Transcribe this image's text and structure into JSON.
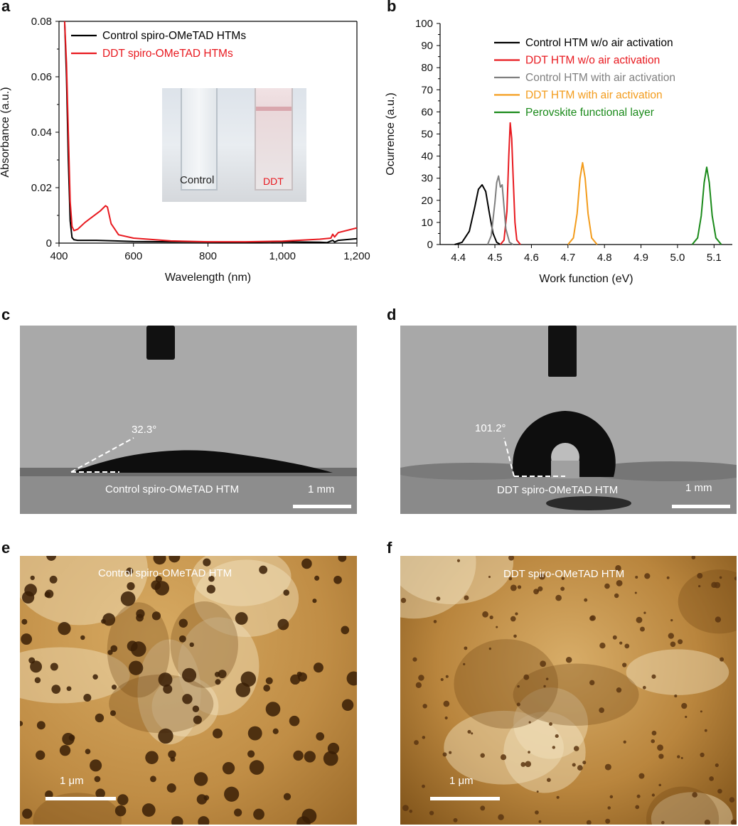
{
  "panels": {
    "a": "a",
    "b": "b",
    "c": "c",
    "d": "d",
    "e": "e",
    "f": "f"
  },
  "chart_data": [
    {
      "type": "line",
      "xlabel": "Wavelength (nm)",
      "ylabel": "Absorbance (a.u.)",
      "xlim": [
        400,
        1200
      ],
      "ylim": [
        0,
        0.08
      ],
      "xticks": [
        400,
        600,
        800,
        1000,
        1200
      ],
      "xtick_labels": [
        "400",
        "600",
        "800",
        "1,000",
        "1,200"
      ],
      "yticks": [
        0,
        0.02,
        0.04,
        0.06,
        0.08
      ],
      "ytick_labels": [
        "0",
        "0.02",
        "0.04",
        "0.06",
        "0.08"
      ],
      "legend_position": "top-right",
      "inset": {
        "control_label": "Control",
        "ddt_label": "DDT"
      },
      "series": [
        {
          "name": "Control spiro-OMeTAD HTMs",
          "color": "#000000",
          "x": [
            415,
            420,
            425,
            430,
            435,
            440,
            450,
            500,
            550,
            600,
            700,
            800,
            900,
            1000,
            1100,
            1120,
            1135,
            1140,
            1150,
            1200
          ],
          "y": [
            0.08,
            0.06,
            0.03,
            0.008,
            0.002,
            0.0012,
            0.001,
            0.001,
            0.0008,
            0.0006,
            0.0005,
            0.0004,
            0.0003,
            0.0005,
            0.0003,
            0.0002,
            0.001,
            0.0004,
            0.001,
            0.0016
          ]
        },
        {
          "name": "DDT spiro-OMeTAD HTMs",
          "color": "#e8191f",
          "x": [
            415,
            420,
            425,
            430,
            435,
            440,
            450,
            470,
            490,
            510,
            525,
            530,
            540,
            560,
            600,
            700,
            800,
            900,
            1000,
            1100,
            1130,
            1135,
            1140,
            1150,
            1200
          ],
          "y": [
            0.08,
            0.065,
            0.04,
            0.015,
            0.006,
            0.0045,
            0.005,
            0.0075,
            0.0095,
            0.0115,
            0.0135,
            0.013,
            0.007,
            0.003,
            0.0018,
            0.0008,
            0.0005,
            0.0005,
            0.0007,
            0.0014,
            0.0018,
            0.0032,
            0.0022,
            0.0038,
            0.0055
          ]
        }
      ]
    },
    {
      "type": "line",
      "xlabel": "Work function (eV)",
      "ylabel": "Ocurrence (a.u.)",
      "xlim": [
        4.35,
        5.15
      ],
      "ylim": [
        0,
        100
      ],
      "xticks": [
        4.4,
        4.5,
        4.6,
        4.7,
        4.8,
        4.9,
        5.0,
        5.1
      ],
      "xtick_labels": [
        "4.4",
        "4.5",
        "4.6",
        "4.7",
        "4.8",
        "4.9",
        "5.0",
        "5.1"
      ],
      "yticks": [
        0,
        10,
        20,
        30,
        40,
        50,
        60,
        70,
        80,
        90,
        100
      ],
      "ytick_labels": [
        "0",
        "10",
        "20",
        "30",
        "40",
        "50",
        "60",
        "70",
        "80",
        "90",
        "100"
      ],
      "legend_position": "top-right",
      "series": [
        {
          "name": "Control HTM w/o air activation",
          "color": "#000000",
          "x": [
            4.39,
            4.41,
            4.43,
            4.445,
            4.455,
            4.465,
            4.475,
            4.485,
            4.495,
            4.505,
            4.515
          ],
          "y": [
            0,
            1,
            6,
            17,
            25,
            27,
            24,
            14,
            5,
            1,
            0
          ]
        },
        {
          "name": "DDT HTM w/o air activation",
          "color": "#e8191f",
          "x": [
            4.515,
            4.525,
            4.533,
            4.538,
            4.542,
            4.546,
            4.55,
            4.555,
            4.56,
            4.57
          ],
          "y": [
            0,
            2,
            15,
            40,
            55,
            48,
            30,
            10,
            2,
            0
          ]
        },
        {
          "name": "Control HTM with air activation",
          "color": "#7f7f7f",
          "x": [
            4.48,
            4.49,
            4.5,
            4.505,
            4.51,
            4.515,
            4.52,
            4.525,
            4.53,
            4.54,
            4.55
          ],
          "y": [
            0,
            4,
            19,
            28,
            31,
            26,
            27,
            17,
            7,
            1,
            0
          ]
        },
        {
          "name": "DDT HTM with air activation",
          "color": "#f39c1c",
          "x": [
            4.7,
            4.715,
            4.725,
            4.733,
            4.74,
            4.747,
            4.755,
            4.765,
            4.78
          ],
          "y": [
            0,
            3,
            14,
            30,
            37,
            30,
            14,
            3,
            0
          ]
        },
        {
          "name": "Perovskite functional layer",
          "color": "#1a8a1a",
          "x": [
            5.04,
            5.055,
            5.065,
            5.073,
            5.08,
            5.087,
            5.095,
            5.105,
            5.12
          ],
          "y": [
            0,
            3,
            13,
            28,
            35,
            28,
            13,
            3,
            0
          ]
        }
      ]
    }
  ],
  "contact_angle": {
    "c": {
      "angle": "32.3°",
      "caption": "Control spiro-OMeTAD HTM",
      "scale": "1 mm"
    },
    "d": {
      "angle": "101.2°",
      "caption": "DDT spiro-OMeTAD HTM",
      "scale": "1 mm"
    }
  },
  "afm": {
    "e": {
      "caption": "Control spiro-OMeTAD HTM",
      "scale": "1 μm"
    },
    "f": {
      "caption": "DDT spiro-OMeTAD HTM",
      "scale": "1 μm"
    }
  }
}
